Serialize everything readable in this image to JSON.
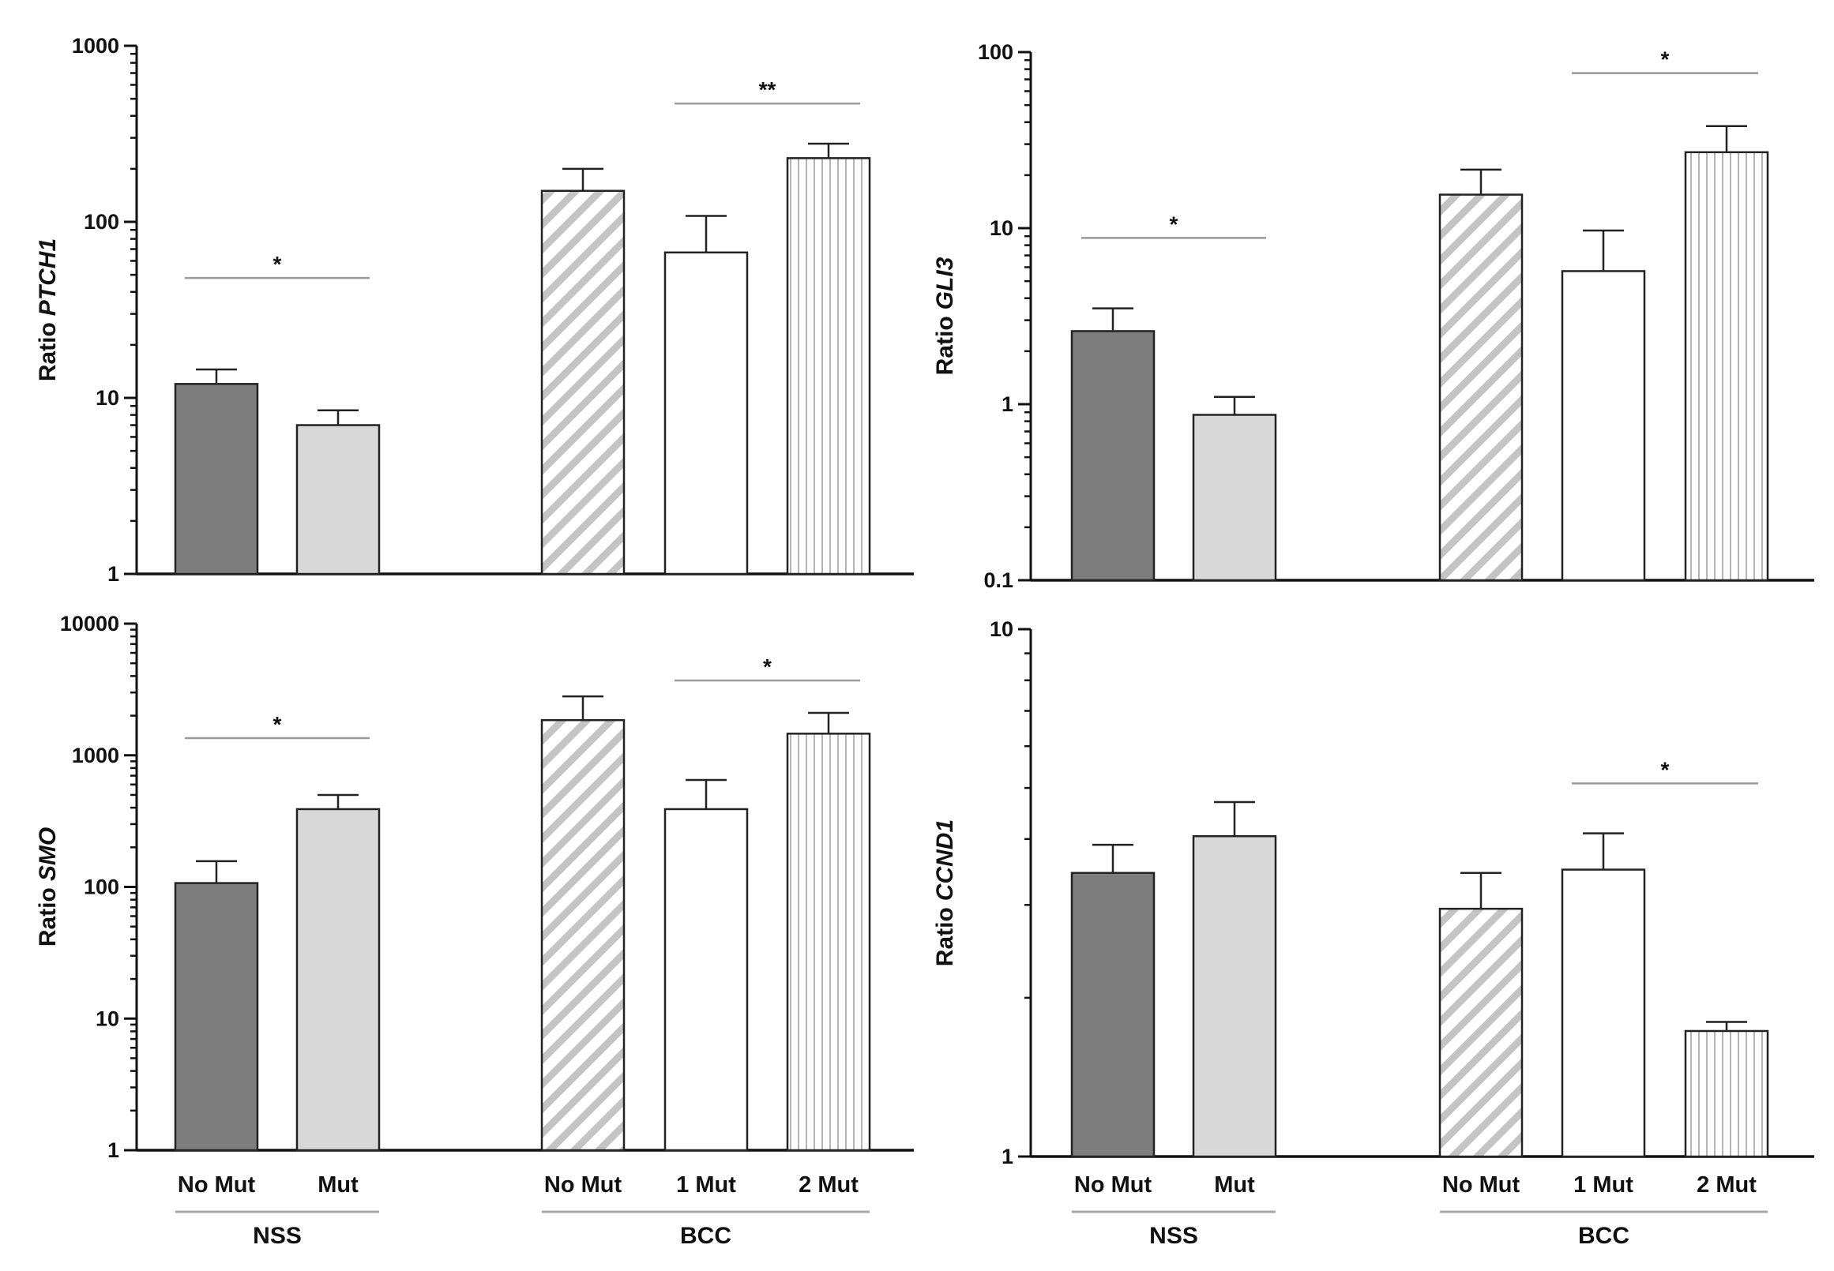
{
  "chart_data": [
    {
      "type": "bar",
      "id": "ptch1",
      "ylabel_prefix": "Ratio",
      "ylabel_gene": "PTCH1",
      "yscale": "log",
      "ylim": [
        1,
        1000
      ],
      "ytick_labels": [
        "1",
        "10",
        "100",
        "1000"
      ],
      "categories": [
        "No Mut",
        "Mut",
        "No Mut",
        "1 Mut",
        "2 Mut"
      ],
      "groups": [
        "NSS",
        "NSS",
        "BCC",
        "BCC",
        "BCC"
      ],
      "values": [
        12,
        7,
        150,
        67,
        230
      ],
      "error_upper": [
        14.5,
        8.5,
        200,
        108,
        278
      ],
      "fills": [
        "dark-gray",
        "light-gray",
        "diagonal-hatch",
        "white",
        "vertical-hatch"
      ],
      "significance": [
        {
          "from": 0,
          "to": 1,
          "label": "*",
          "y": 48
        },
        {
          "from": 3,
          "to": 4,
          "label": "**",
          "y": 470
        }
      ]
    },
    {
      "type": "bar",
      "id": "gli3",
      "ylabel_prefix": "Ratio",
      "ylabel_gene": "GLI3",
      "yscale": "log",
      "ylim": [
        0.1,
        100
      ],
      "ytick_labels": [
        "0.1",
        "1",
        "10",
        "100"
      ],
      "categories": [
        "No Mut",
        "Mut",
        "No Mut",
        "1 Mut",
        "2 Mut"
      ],
      "groups": [
        "NSS",
        "NSS",
        "BCC",
        "BCC",
        "BCC"
      ],
      "values": [
        2.6,
        0.87,
        15.5,
        5.7,
        27
      ],
      "error_upper": [
        3.5,
        1.1,
        21.5,
        9.7,
        38
      ],
      "fills": [
        "dark-gray",
        "light-gray",
        "diagonal-hatch",
        "white",
        "vertical-hatch"
      ],
      "significance": [
        {
          "from": 0,
          "to": 1,
          "label": "*",
          "y": 8.8
        },
        {
          "from": 3,
          "to": 4,
          "label": "*",
          "y": 76
        }
      ]
    },
    {
      "type": "bar",
      "id": "smo",
      "ylabel_prefix": "Ratio",
      "ylabel_gene": "SMO",
      "yscale": "log",
      "ylim": [
        1,
        10000
      ],
      "ytick_labels": [
        "1",
        "10",
        "100",
        "1000",
        "10000"
      ],
      "categories": [
        "No Mut",
        "Mut",
        "No Mut",
        "1 Mut",
        "2 Mut"
      ],
      "groups": [
        "NSS",
        "NSS",
        "BCC",
        "BCC",
        "BCC"
      ],
      "values": [
        107,
        390,
        1850,
        390,
        1460
      ],
      "error_upper": [
        157,
        500,
        2800,
        650,
        2100
      ],
      "fills": [
        "dark-gray",
        "light-gray",
        "diagonal-hatch",
        "white",
        "vertical-hatch"
      ],
      "significance": [
        {
          "from": 0,
          "to": 1,
          "label": "*",
          "y": 1350
        },
        {
          "from": 3,
          "to": 4,
          "label": "*",
          "y": 3700
        }
      ]
    },
    {
      "type": "bar",
      "id": "ccnd1",
      "ylabel_prefix": "Ratio",
      "ylabel_gene": "CCND1",
      "yscale": "log",
      "ylim": [
        1,
        10
      ],
      "ytick_labels": [
        "1",
        "10"
      ],
      "categories": [
        "No Mut",
        "Mut",
        "No Mut",
        "1 Mut",
        "2 Mut"
      ],
      "groups": [
        "NSS",
        "NSS",
        "BCC",
        "BCC",
        "BCC"
      ],
      "values": [
        3.45,
        4.05,
        2.95,
        3.5,
        1.73
      ],
      "error_upper": [
        3.9,
        4.7,
        3.45,
        4.1,
        1.8
      ],
      "fills": [
        "dark-gray",
        "light-gray",
        "diagonal-hatch",
        "white",
        "vertical-hatch"
      ],
      "significance": [
        {
          "from": 3,
          "to": 4,
          "label": "*",
          "y": 5.1
        }
      ]
    }
  ],
  "x_axis": {
    "left": {
      "categories": [
        "No Mut",
        "Mut",
        "No Mut",
        "1 Mut",
        "2 Mut"
      ],
      "groups": [
        "NSS",
        "BCC"
      ]
    },
    "right": {
      "categories": [
        "No Mut",
        "Mut",
        "No Mut",
        "1 Mut",
        "2 Mut"
      ],
      "groups": [
        "NSS",
        "BCC"
      ]
    }
  },
  "colors": {
    "dark_gray": "#7d7d7d",
    "light_gray": "#d8d8d8",
    "hatch": "#c4c4c4",
    "axis": "#111111",
    "sig_line": "#9a9a9a",
    "group_line": "#a8a8a8"
  }
}
